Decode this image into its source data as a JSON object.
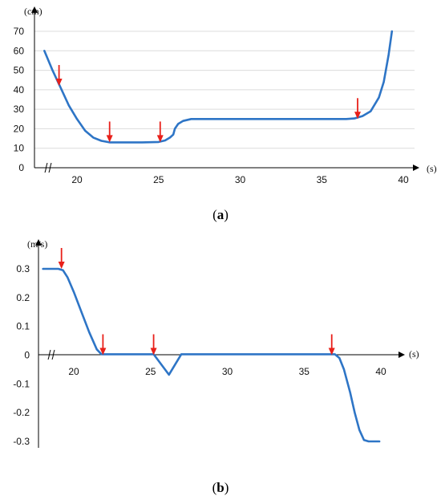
{
  "chart_data": [
    {
      "type": "line",
      "caption_open": "(",
      "caption_letter": "a",
      "caption_close": ")",
      "y_unit": "(cm)",
      "x_unit": "(s)",
      "xlim": [
        18,
        40
      ],
      "ylim": [
        0,
        70
      ],
      "x_ticks": [
        20,
        25,
        30,
        35,
        40
      ],
      "y_ticks": [
        0,
        10,
        20,
        30,
        40,
        50,
        60,
        70
      ],
      "grid": true,
      "line_color": "#2e75c6",
      "marker_color": "#e8201a",
      "series": [
        {
          "x": [
            18,
            18.5,
            19,
            19.5,
            20,
            20.5,
            21,
            21.5,
            22,
            23,
            24,
            25,
            25.4,
            25.7,
            25.9,
            26,
            26.2,
            26.5,
            27,
            30,
            35,
            36.5,
            37,
            37.5,
            38,
            38.5,
            38.8,
            39.1,
            39.3
          ],
          "y": [
            60,
            50,
            41,
            32,
            25,
            19,
            15.5,
            13.8,
            13,
            13,
            13,
            13.2,
            14,
            15.5,
            17,
            20,
            22.5,
            24,
            25,
            25,
            25,
            25,
            25.3,
            26.5,
            29,
            36,
            44,
            58,
            70
          ]
        }
      ],
      "markers": [
        {
          "x": 18.9,
          "y": 42
        },
        {
          "x": 22,
          "y": 13
        },
        {
          "x": 25.1,
          "y": 13
        },
        {
          "x": 37.2,
          "y": 25
        }
      ]
    },
    {
      "type": "line",
      "caption_open": "(",
      "caption_letter": "b",
      "caption_close": ")",
      "y_unit": "(m/s)",
      "x_unit": "(s)",
      "xlim": [
        18,
        40
      ],
      "ylim": [
        -0.3,
        0.3
      ],
      "x_ticks": [
        20,
        25,
        30,
        35,
        40
      ],
      "y_ticks": [
        0.3,
        0.2,
        0.1,
        0,
        -0.1,
        -0.2,
        -0.3
      ],
      "y_tick_labels": [
        "0.3",
        "0.2",
        "0.1",
        "0",
        "-0.1",
        "-0.2",
        "-0.3"
      ],
      "grid": false,
      "line_color": "#2e75c6",
      "marker_color": "#e8201a",
      "series": [
        {
          "x": [
            18,
            19,
            19.3,
            19.6,
            20,
            20.5,
            21,
            21.5,
            21.8,
            22,
            25,
            25.2,
            26.2,
            27,
            37,
            37.3,
            37.6,
            38,
            38.3,
            38.6,
            38.9,
            39.2,
            39.9
          ],
          "y": [
            0.3,
            0.3,
            0.295,
            0.27,
            0.22,
            0.15,
            0.08,
            0.02,
            0.003,
            0.003,
            0.003,
            0.003,
            -0.068,
            0.003,
            0.003,
            -0.01,
            -0.05,
            -0.13,
            -0.2,
            -0.26,
            -0.295,
            -0.3,
            -0.3
          ]
        }
      ],
      "markers": [
        {
          "x": 19.2,
          "y": 0.3
        },
        {
          "x": 21.9,
          "y": 0
        },
        {
          "x": 25.2,
          "y": 0
        },
        {
          "x": 36.8,
          "y": 0
        }
      ]
    }
  ]
}
